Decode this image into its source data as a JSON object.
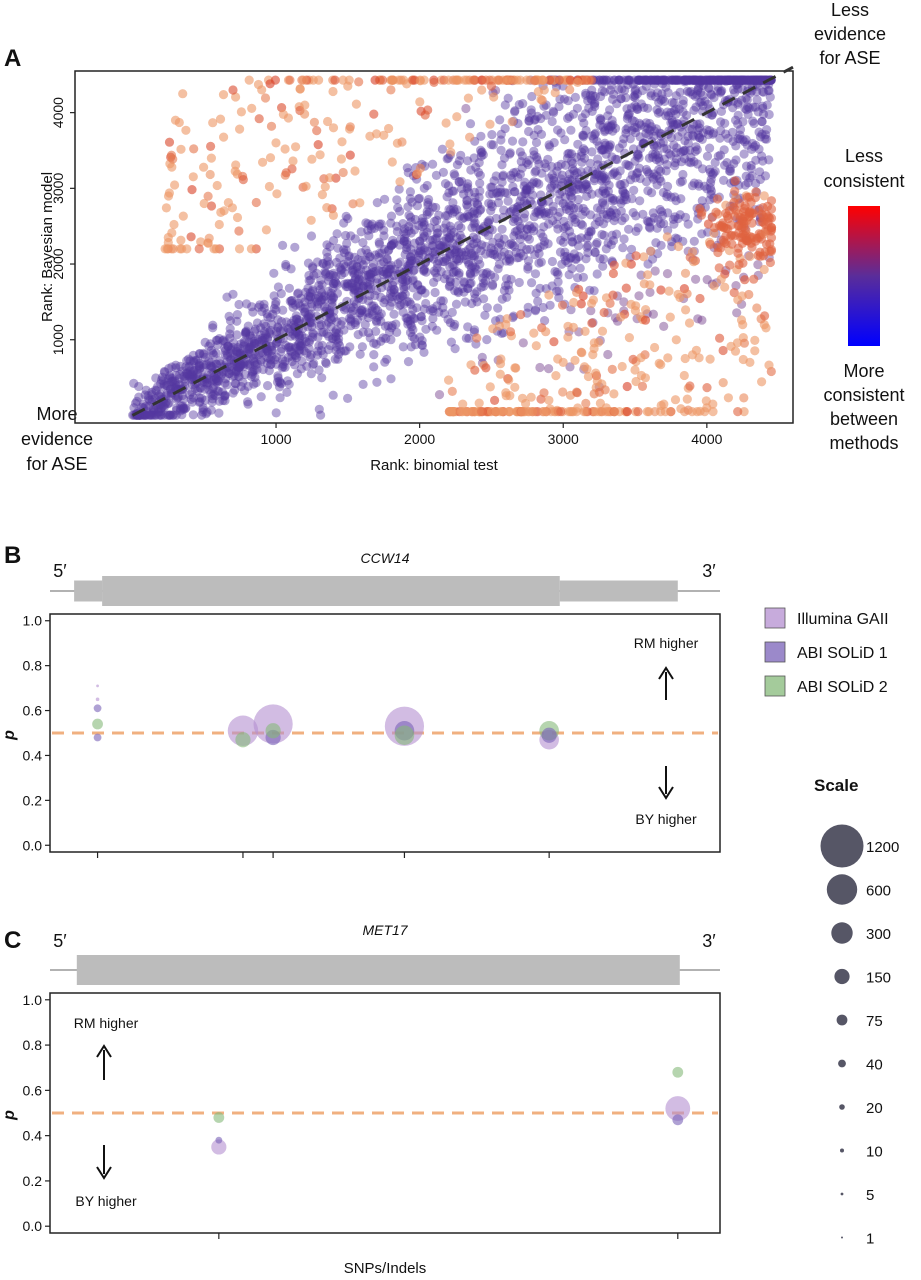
{
  "panels": {
    "A": {
      "letter": "A",
      "corner_top": [
        "Less",
        "evidence",
        "for ASE"
      ],
      "corner_bottom": [
        "More",
        "evidence",
        "for ASE"
      ],
      "colorbar": {
        "top_label": [
          "Less",
          "consistent"
        ],
        "bottom_label": [
          "More",
          "consistent",
          "between",
          "methods"
        ],
        "colors": [
          "#ff0000",
          "#5a2d9a",
          "#0000ff"
        ]
      }
    },
    "B": {
      "letter": "B",
      "gene": "CCW14",
      "five_prime": "5′",
      "three_prime": "3′",
      "rm_note": "RM higher",
      "by_note": "BY higher"
    },
    "C": {
      "letter": "C",
      "gene": "MET17",
      "five_prime": "5′",
      "three_prime": "3′",
      "rm_note": "RM higher",
      "by_note": "BY higher"
    }
  },
  "legend": {
    "items": [
      {
        "label": "Illumina GAII",
        "color": "#b48fd0"
      },
      {
        "label": "ABI SOLiD 1",
        "color": "#7a62b8"
      },
      {
        "label": "ABI SOLiD 2",
        "color": "#86b97a"
      }
    ]
  },
  "scale": {
    "title": "Scale",
    "entries": [
      {
        "label": "1200",
        "value": 1200
      },
      {
        "label": "600",
        "value": 600
      },
      {
        "label": "300",
        "value": 300
      },
      {
        "label": "150",
        "value": 150
      },
      {
        "label": "75",
        "value": 75
      },
      {
        "label": "40",
        "value": 40
      },
      {
        "label": "20",
        "value": 20
      },
      {
        "label": "10",
        "value": 10
      },
      {
        "label": "5",
        "value": 5
      },
      {
        "label": "1",
        "value": 1
      }
    ]
  },
  "chart_data": [
    {
      "panel": "A",
      "type": "scatter",
      "xlabel": "Rank: binomial test",
      "ylabel": "Rank: Bayesian model",
      "xlim": [
        -400,
        4600
      ],
      "ylim": [
        -100,
        4550
      ],
      "xticks": [
        1000,
        2000,
        3000,
        4000
      ],
      "yticks": [
        1000,
        2000,
        3000,
        4000
      ],
      "diagonal": [
        [
          0,
          0
        ],
        [
          4600,
          4600
        ]
      ],
      "point_count_approx": 4450,
      "points": [
        [
          40,
          30,
          0.05
        ],
        [
          120,
          200,
          0.1
        ],
        [
          200,
          100,
          0.08
        ],
        [
          300,
          350,
          0.1
        ],
        [
          450,
          600,
          0.15
        ],
        [
          600,
          450,
          0.12
        ],
        [
          700,
          900,
          0.15
        ],
        [
          850,
          700,
          0.12
        ],
        [
          950,
          1100,
          0.18
        ],
        [
          1100,
          900,
          0.15
        ],
        [
          1200,
          1500,
          0.2
        ],
        [
          1350,
          1200,
          0.18
        ],
        [
          1500,
          1700,
          0.2
        ],
        [
          1600,
          1400,
          0.2
        ],
        [
          1750,
          1900,
          0.22
        ],
        [
          1900,
          1600,
          0.25
        ],
        [
          2000,
          2300,
          0.25
        ],
        [
          2150,
          1900,
          0.25
        ],
        [
          2300,
          2600,
          0.28
        ],
        [
          2400,
          2200,
          0.28
        ],
        [
          2550,
          2900,
          0.3
        ],
        [
          2700,
          2500,
          0.3
        ],
        [
          2850,
          3200,
          0.3
        ],
        [
          3000,
          2800,
          0.32
        ],
        [
          3150,
          3500,
          0.3
        ],
        [
          3300,
          3100,
          0.32
        ],
        [
          3450,
          3800,
          0.32
        ],
        [
          3600,
          3400,
          0.35
        ],
        [
          3750,
          4000,
          0.33
        ],
        [
          3900,
          3700,
          0.35
        ],
        [
          4050,
          4200,
          0.35
        ],
        [
          4200,
          3900,
          0.38
        ],
        [
          4350,
          4350,
          0.4
        ],
        [
          4420,
          4100,
          0.4
        ],
        [
          300,
          3900,
          0.85
        ],
        [
          350,
          4250,
          0.85
        ],
        [
          550,
          3400,
          0.82
        ],
        [
          500,
          2800,
          0.8
        ],
        [
          250,
          2350,
          0.8
        ],
        [
          900,
          4300,
          0.88
        ],
        [
          1200,
          4100,
          0.88
        ],
        [
          1500,
          4350,
          0.92
        ],
        [
          1800,
          4300,
          0.95
        ],
        [
          2100,
          4400,
          0.97
        ],
        [
          2500,
          4350,
          0.97
        ],
        [
          2800,
          4420,
          0.95
        ],
        [
          3100,
          4400,
          0.9
        ],
        [
          1000,
          3600,
          0.8
        ],
        [
          1400,
          3800,
          0.85
        ],
        [
          2300,
          150,
          0.85
        ],
        [
          2600,
          300,
          0.9
        ],
        [
          2900,
          200,
          0.92
        ],
        [
          3300,
          100,
          0.85
        ],
        [
          3700,
          150,
          0.85
        ],
        [
          4000,
          100,
          0.9
        ],
        [
          3000,
          700,
          0.9
        ],
        [
          3500,
          600,
          0.9
        ],
        [
          3900,
          800,
          0.88
        ],
        [
          4300,
          700,
          0.85
        ],
        [
          4250,
          1200,
          0.85
        ],
        [
          4100,
          1800,
          0.88
        ],
        [
          4300,
          2100,
          0.92
        ],
        [
          4400,
          2400,
          0.95
        ],
        [
          4300,
          2700,
          0.97
        ],
        [
          4150,
          2600,
          0.97
        ],
        [
          4400,
          2900,
          0.9
        ],
        [
          2600,
          1200,
          0.8
        ],
        [
          3400,
          1300,
          0.85
        ],
        [
          3800,
          1600,
          0.85
        ],
        [
          1500,
          2600,
          0.55
        ],
        [
          2200,
          3400,
          0.5
        ],
        [
          2800,
          3900,
          0.5
        ],
        [
          3300,
          2200,
          0.55
        ],
        [
          3800,
          2600,
          0.55
        ],
        [
          1800,
          1000,
          0.5
        ],
        [
          1300,
          600,
          0.45
        ],
        [
          700,
          1600,
          0.45
        ],
        [
          2400,
          1500,
          0.55
        ],
        [
          3500,
          4200,
          0.45
        ]
      ]
    },
    {
      "panel": "B",
      "type": "scatter",
      "ylabel": "p",
      "ylim": [
        -0.03,
        1.03
      ],
      "yticks": [
        0.0,
        0.2,
        0.4,
        0.6,
        0.8,
        1.0
      ],
      "xticks": [
        0.071,
        0.288,
        0.333,
        0.529,
        0.745
      ],
      "reference_line": 0.5,
      "gene_model": {
        "utr5": [
          0.0,
          0.042
        ],
        "cds": [
          0.042,
          0.725
        ],
        "utr3": [
          0.725,
          0.937
        ]
      },
      "points": [
        {
          "x": 0.071,
          "y": 0.71,
          "count": 5,
          "platform": "Illumina GAII"
        },
        {
          "x": 0.071,
          "y": 0.65,
          "count": 8,
          "platform": "Illumina GAII"
        },
        {
          "x": 0.071,
          "y": 0.61,
          "count": 40,
          "platform": "ABI SOLiD 1"
        },
        {
          "x": 0.071,
          "y": 0.54,
          "count": 75,
          "platform": "ABI SOLiD 2"
        },
        {
          "x": 0.071,
          "y": 0.48,
          "count": 40,
          "platform": "ABI SOLiD 1"
        },
        {
          "x": 0.288,
          "y": 0.51,
          "count": 600,
          "platform": "Illumina GAII"
        },
        {
          "x": 0.288,
          "y": 0.47,
          "count": 150,
          "platform": "ABI SOLiD 2"
        },
        {
          "x": 0.333,
          "y": 0.54,
          "count": 1000,
          "platform": "Illumina GAII"
        },
        {
          "x": 0.333,
          "y": 0.48,
          "count": 150,
          "platform": "ABI SOLiD 1"
        },
        {
          "x": 0.333,
          "y": 0.51,
          "count": 150,
          "platform": "ABI SOLiD 2"
        },
        {
          "x": 0.529,
          "y": 0.53,
          "count": 1000,
          "platform": "Illumina GAII"
        },
        {
          "x": 0.529,
          "y": 0.51,
          "count": 250,
          "platform": "ABI SOLiD 1"
        },
        {
          "x": 0.529,
          "y": 0.49,
          "count": 250,
          "platform": "ABI SOLiD 2"
        },
        {
          "x": 0.745,
          "y": 0.47,
          "count": 250,
          "platform": "Illumina GAII"
        },
        {
          "x": 0.745,
          "y": 0.51,
          "count": 250,
          "platform": "ABI SOLiD 2"
        },
        {
          "x": 0.745,
          "y": 0.49,
          "count": 150,
          "platform": "ABI SOLiD 1"
        }
      ]
    },
    {
      "panel": "C",
      "type": "scatter",
      "xlabel": "SNPs/Indels",
      "ylabel": "p",
      "ylim": [
        -0.03,
        1.03
      ],
      "yticks": [
        0.0,
        0.2,
        0.4,
        0.6,
        0.8,
        1.0
      ],
      "xticks": [
        0.252,
        0.937
      ],
      "reference_line": 0.5,
      "gene_model": {
        "cds": [
          0.04,
          0.94
        ]
      },
      "points": [
        {
          "x": 0.252,
          "y": 0.48,
          "count": 75,
          "platform": "ABI SOLiD 2"
        },
        {
          "x": 0.252,
          "y": 0.38,
          "count": 30,
          "platform": "ABI SOLiD 1"
        },
        {
          "x": 0.252,
          "y": 0.35,
          "count": 150,
          "platform": "Illumina GAII"
        },
        {
          "x": 0.937,
          "y": 0.68,
          "count": 75,
          "platform": "ABI SOLiD 2"
        },
        {
          "x": 0.937,
          "y": 0.52,
          "count": 400,
          "platform": "Illumina GAII"
        },
        {
          "x": 0.937,
          "y": 0.47,
          "count": 75,
          "platform": "ABI SOLiD 1"
        }
      ]
    }
  ]
}
